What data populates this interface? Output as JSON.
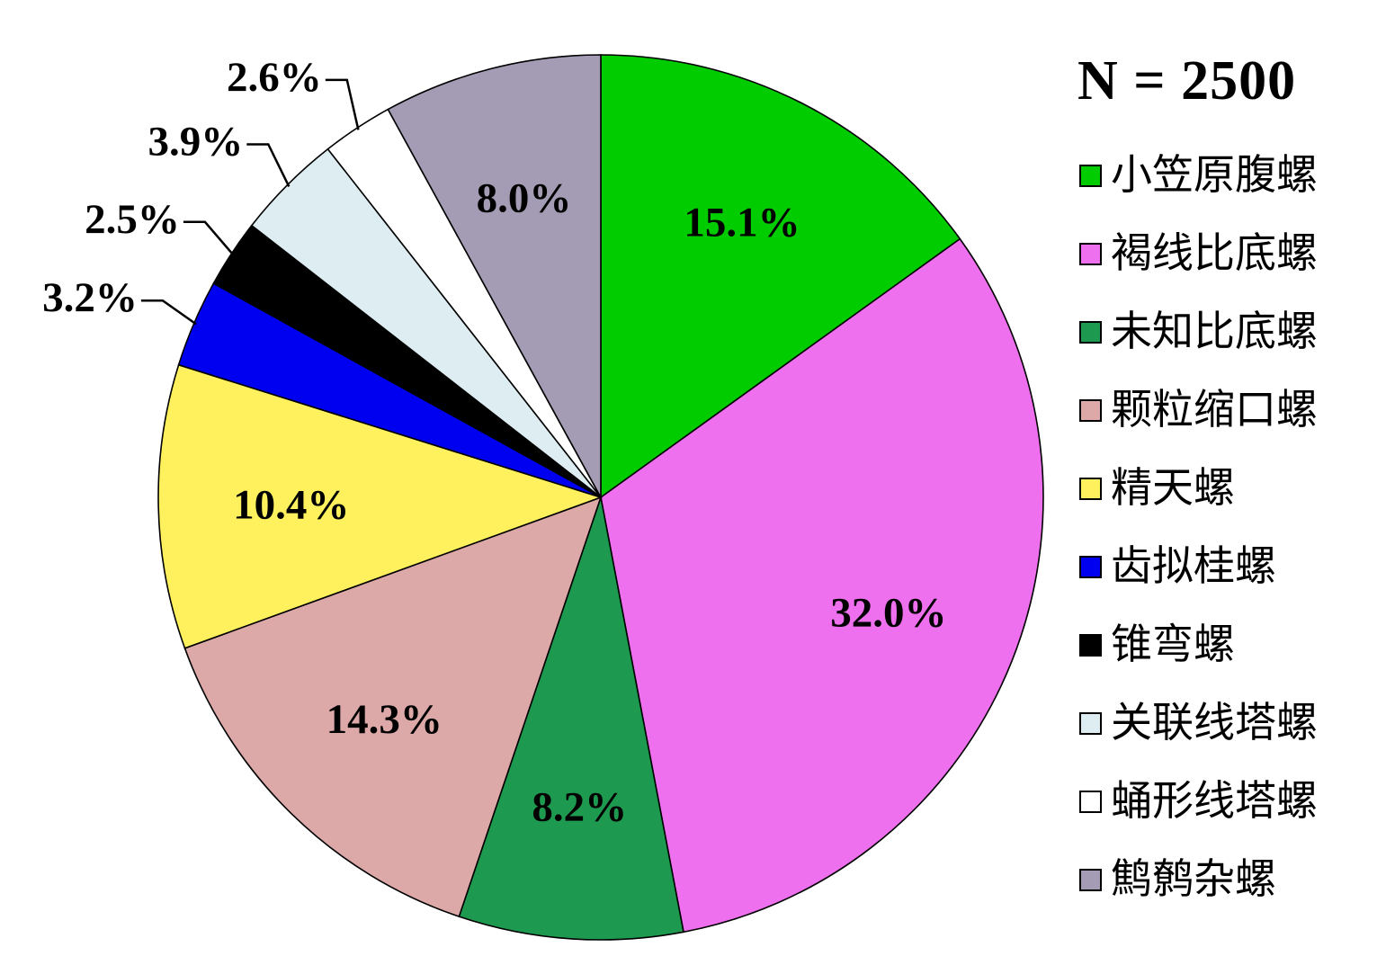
{
  "chart_data": {
    "type": "pie",
    "title": "N = 2500",
    "categories": [
      "小笠原腹螺",
      "褐线比底螺",
      "未知比底螺",
      "颗粒缩口螺",
      "精天螺",
      "齿拟桂螺",
      "锥弯螺",
      "关联线塔螺",
      "蛹形线塔螺",
      "鹪鹩杂螺"
    ],
    "values": [
      15.1,
      32.0,
      8.2,
      14.3,
      10.4,
      3.2,
      2.5,
      3.9,
      2.6,
      8.0
    ],
    "labels": [
      "15.1%",
      "32.0%",
      "8.2%",
      "14.3%",
      "10.4%",
      "3.2%",
      "2.5%",
      "3.9%",
      "2.6%",
      "8.0%"
    ],
    "colors": [
      "#00CC00",
      "#EE70EE",
      "#1E9A50",
      "#DCA8A8",
      "#FFF15E",
      "#0000F0",
      "#000000",
      "#DDEDF2",
      "#FFFFFF",
      "#A49BB5"
    ],
    "start": "top",
    "direction": "clockwise",
    "legend_position": "right",
    "inside_label_threshold": 8.0,
    "label_color": "#000000",
    "slice_outline_color": "#000000"
  }
}
